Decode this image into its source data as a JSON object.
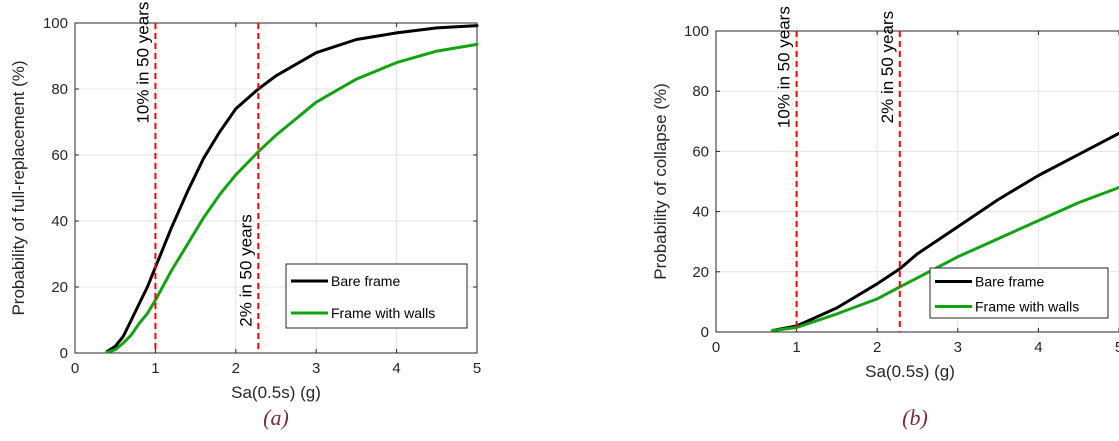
{
  "chart_data": [
    {
      "type": "line",
      "caption": "(a)",
      "xlabel": "Sa(0.5s) (g)",
      "ylabel": "Probability of full-replacement (%)",
      "xlim": [
        0,
        5
      ],
      "ylim": [
        0,
        100
      ],
      "xticks": [
        0,
        1,
        2,
        3,
        4,
        5
      ],
      "yticks": [
        0,
        20,
        40,
        60,
        80,
        100
      ],
      "grid": true,
      "legend_position": "bottom-right",
      "series": [
        {
          "name": "Bare frame",
          "color": "#000000",
          "x": [
            0.4,
            0.5,
            0.6,
            0.7,
            0.8,
            0.9,
            1.0,
            1.2,
            1.4,
            1.6,
            1.8,
            2.0,
            2.28,
            2.5,
            3.0,
            3.5,
            4.0,
            4.5,
            5.0
          ],
          "y": [
            0.5,
            2,
            5,
            10,
            15,
            20,
            26,
            38,
            49,
            59,
            67,
            74,
            80,
            84,
            91,
            95,
            97,
            98.5,
            99.2
          ]
        },
        {
          "name": "Frame with walls",
          "color": "#12a312",
          "x": [
            0.4,
            0.5,
            0.6,
            0.7,
            0.8,
            0.9,
            1.0,
            1.2,
            1.4,
            1.6,
            1.8,
            2.0,
            2.28,
            2.5,
            3.0,
            3.5,
            4.0,
            4.5,
            5.0
          ],
          "y": [
            0.2,
            1,
            3,
            5.5,
            9,
            12,
            16,
            25,
            33,
            41,
            48,
            54,
            61,
            66,
            76,
            83,
            88,
            91.5,
            93.5
          ]
        }
      ],
      "vlines": [
        {
          "x": 1.0,
          "label": "10% in 50 years",
          "color": "#ff0000",
          "label_y": 88
        },
        {
          "x": 2.28,
          "label": "2% in 50 years",
          "color": "#ff0000",
          "label_y": 25
        }
      ]
    },
    {
      "type": "line",
      "caption": "(b)",
      "xlabel": "Sa(0.5s) (g)",
      "ylabel": "Probability of collapse (%)",
      "xlim": [
        0,
        5
      ],
      "ylim": [
        0,
        100
      ],
      "xticks": [
        0,
        1,
        2,
        3,
        4,
        5
      ],
      "yticks": [
        0,
        20,
        40,
        60,
        80,
        100
      ],
      "grid": true,
      "legend_position": "bottom-right",
      "series": [
        {
          "name": "Bare frame",
          "color": "#000000",
          "x": [
            0.7,
            1.0,
            1.5,
            2.0,
            2.28,
            2.5,
            3.0,
            3.5,
            4.0,
            4.5,
            5.0
          ],
          "y": [
            0.5,
            2,
            8,
            16,
            21,
            26,
            35,
            44,
            52,
            59,
            66
          ]
        },
        {
          "name": "Frame with walls",
          "color": "#12a312",
          "x": [
            0.7,
            1.0,
            1.5,
            2.0,
            2.28,
            2.5,
            3.0,
            3.5,
            4.0,
            4.5,
            5.0
          ],
          "y": [
            0.5,
            1.5,
            6,
            11,
            15,
            18,
            25,
            31,
            37,
            43,
            48
          ]
        }
      ],
      "vlines": [
        {
          "x": 1.0,
          "label": "10% in 50 years",
          "color": "#ff0000",
          "label_y": 88
        },
        {
          "x": 2.28,
          "label": "2% in 50 years",
          "color": "#ff0000",
          "label_y": 88
        }
      ]
    }
  ]
}
